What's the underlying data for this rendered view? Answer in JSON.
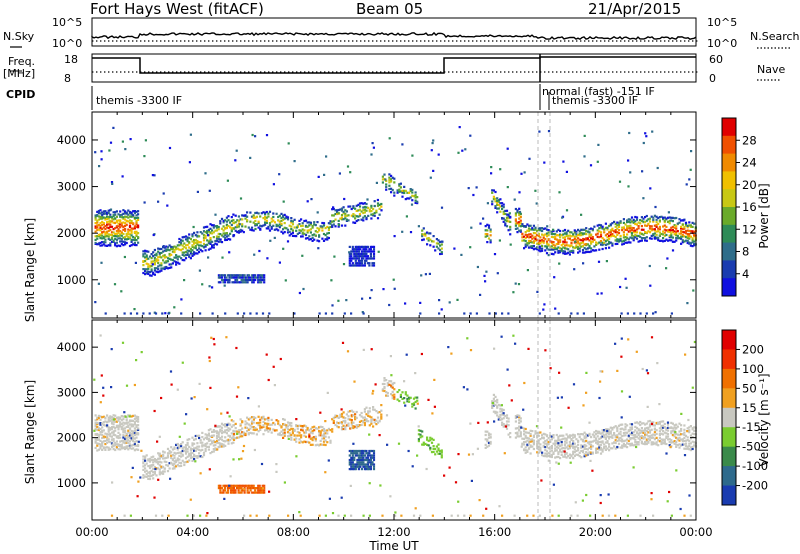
{
  "title": {
    "radar": "Fort Hays West (fitACF)",
    "beam": "Beam 05",
    "date": "21/Apr/2015"
  },
  "top_panels": {
    "nsky_label": "N.Sky",
    "nsearch_label": "N.Search",
    "noise_ticks": [
      "10^5",
      "10^0"
    ],
    "freq_label": [
      "Freq.",
      "[MHz]"
    ],
    "freq_ticks": [
      "18",
      "8"
    ],
    "nave_ticks": [
      "60",
      "0"
    ],
    "nave_label": "Nave",
    "cpid_label": "CPID",
    "cpid_segments": [
      {
        "label": "themis -3300 IF",
        "start": 0.0,
        "end": 17.9
      },
      {
        "label": "normal (fast) -151 IF",
        "start": 17.9,
        "end": 18.3
      },
      {
        "label": "themis -3300 IF",
        "start": 18.3,
        "end": 24.0
      }
    ]
  },
  "chart_data": [
    {
      "type": "heatmap",
      "name": "power",
      "ylabel": "Slant Range [km]",
      "xlabel": "Time UT",
      "x_range_hours": [
        0,
        24
      ],
      "ylim": [
        180,
        4600
      ],
      "y_ticks": [
        "1000",
        "2000",
        "3000",
        "4000"
      ],
      "x_ticks": [
        "00:00",
        "04:00",
        "08:00",
        "12:00",
        "16:00",
        "20:00",
        "00:00"
      ],
      "colorbar_label": "Power [dB]",
      "colorbar_ticks": [
        "4",
        "8",
        "12",
        "16",
        "20",
        "24",
        "28"
      ],
      "colorbar_colors": [
        "#1010e0",
        "#1a3cb0",
        "#2f6d8a",
        "#2e8b57",
        "#6aaa2a",
        "#c8c814",
        "#f0c000",
        "#f08a00",
        "#f05000",
        "#e00000"
      ]
    },
    {
      "type": "heatmap",
      "name": "velocity",
      "ylabel": "Slant Range [km]",
      "xlabel": "Time UT",
      "x_range_hours": [
        0,
        24
      ],
      "ylim": [
        180,
        4600
      ],
      "y_ticks": [
        "1000",
        "2000",
        "3000",
        "4000"
      ],
      "x_ticks": [
        "00:00",
        "04:00",
        "08:00",
        "12:00",
        "16:00",
        "20:00",
        "00:00"
      ],
      "colorbar_label": "Velocity [m s⁻¹]",
      "colorbar_ticks": [
        "200",
        "100",
        "50",
        "15",
        "-15",
        "-50",
        "-100",
        "-200"
      ],
      "colorbar_colors": [
        "#1a3cb0",
        "#2e6a8c",
        "#3a8a4a",
        "#7acc30",
        "#c8c8c0",
        "#f0a020",
        "#f07000",
        "#f03000",
        "#e00000"
      ]
    }
  ],
  "xaxis_title": "Time UT"
}
